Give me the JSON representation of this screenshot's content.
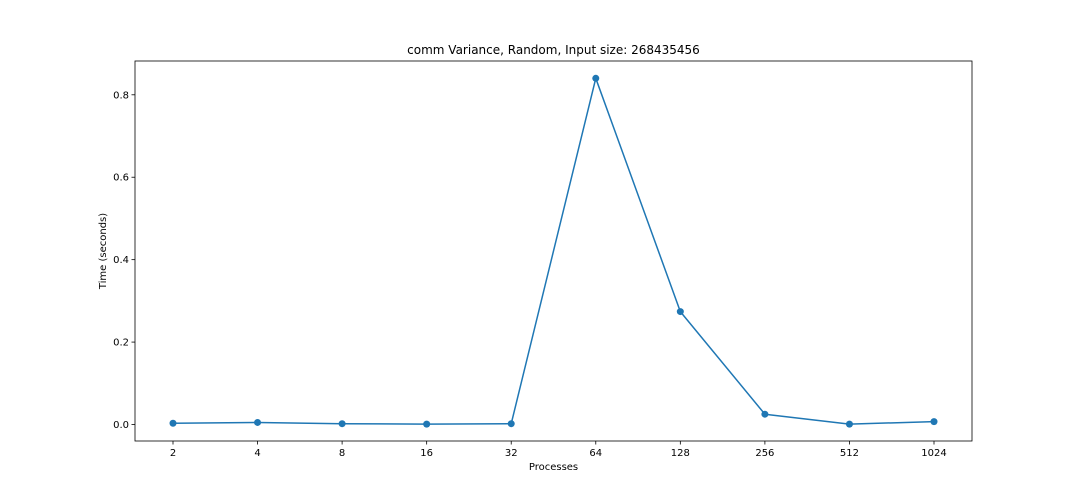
{
  "chart_data": {
    "type": "line",
    "title": "comm Variance, Random, Input size: 268435456",
    "xlabel": "Processes",
    "ylabel": "Time (seconds)",
    "categories": [
      "2",
      "4",
      "8",
      "16",
      "32",
      "64",
      "128",
      "256",
      "512",
      "1024"
    ],
    "series": [
      {
        "values": [
          0.003,
          0.005,
          0.002,
          0.001,
          0.002,
          0.84,
          0.274,
          0.025,
          0.001,
          0.007
        ],
        "color": "#1f77b4"
      }
    ],
    "ylim": [
      -0.04,
      0.882
    ],
    "yticks": [
      0.0,
      0.2,
      0.4,
      0.6,
      0.8
    ],
    "ytick_labels": [
      "0.0",
      "0.2",
      "0.4",
      "0.6",
      "0.8"
    ],
    "grid": false,
    "marker": "circle"
  }
}
